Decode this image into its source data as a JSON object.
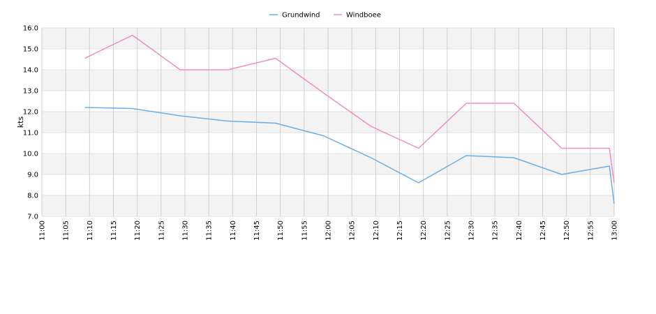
{
  "chart_data": {
    "type": "line",
    "title": "",
    "xlabel": "",
    "ylabel": "kts",
    "ylim": [
      7.0,
      16.0
    ],
    "y_ticks": [
      "7.0",
      "8.0",
      "9.0",
      "10.0",
      "11.0",
      "12.0",
      "13.0",
      "14.0",
      "15.0",
      "16.0"
    ],
    "x_ticks": [
      "11:00",
      "11:05",
      "11:10",
      "11:15",
      "11:20",
      "11:25",
      "11:30",
      "11:35",
      "11:40",
      "11:45",
      "11:50",
      "11:55",
      "12:00",
      "12:05",
      "12:10",
      "12:15",
      "12:20",
      "12:25",
      "12:30",
      "12:35",
      "12:40",
      "12:45",
      "12:50",
      "12:55",
      "13:00"
    ],
    "x_range": [
      "11:00",
      "13:00"
    ],
    "grid": true,
    "legend_position": "top-center",
    "series": [
      {
        "name": "Grundwind",
        "color": "#6aaeea",
        "x": [
          "11:09",
          "11:19",
          "11:29",
          "11:39",
          "11:49",
          "11:59",
          "12:09",
          "12:19",
          "12:29",
          "12:39",
          "12:49",
          "12:59",
          "13:00"
        ],
        "values": [
          12.2,
          12.15,
          11.8,
          11.55,
          11.45,
          10.85,
          9.8,
          8.6,
          9.9,
          9.8,
          9.0,
          9.4,
          7.6
        ]
      },
      {
        "name": "Windboee",
        "color": "#f08cc4",
        "x": [
          "11:09",
          "11:19",
          "11:29",
          "11:39",
          "11:49",
          "11:59",
          "12:09",
          "12:19",
          "12:29",
          "12:39",
          "12:49",
          "12:59",
          "13:00"
        ],
        "values": [
          14.55,
          15.65,
          14.0,
          14.0,
          14.55,
          12.9,
          11.3,
          10.25,
          12.4,
          12.4,
          10.25,
          10.25,
          8.6
        ]
      }
    ]
  }
}
